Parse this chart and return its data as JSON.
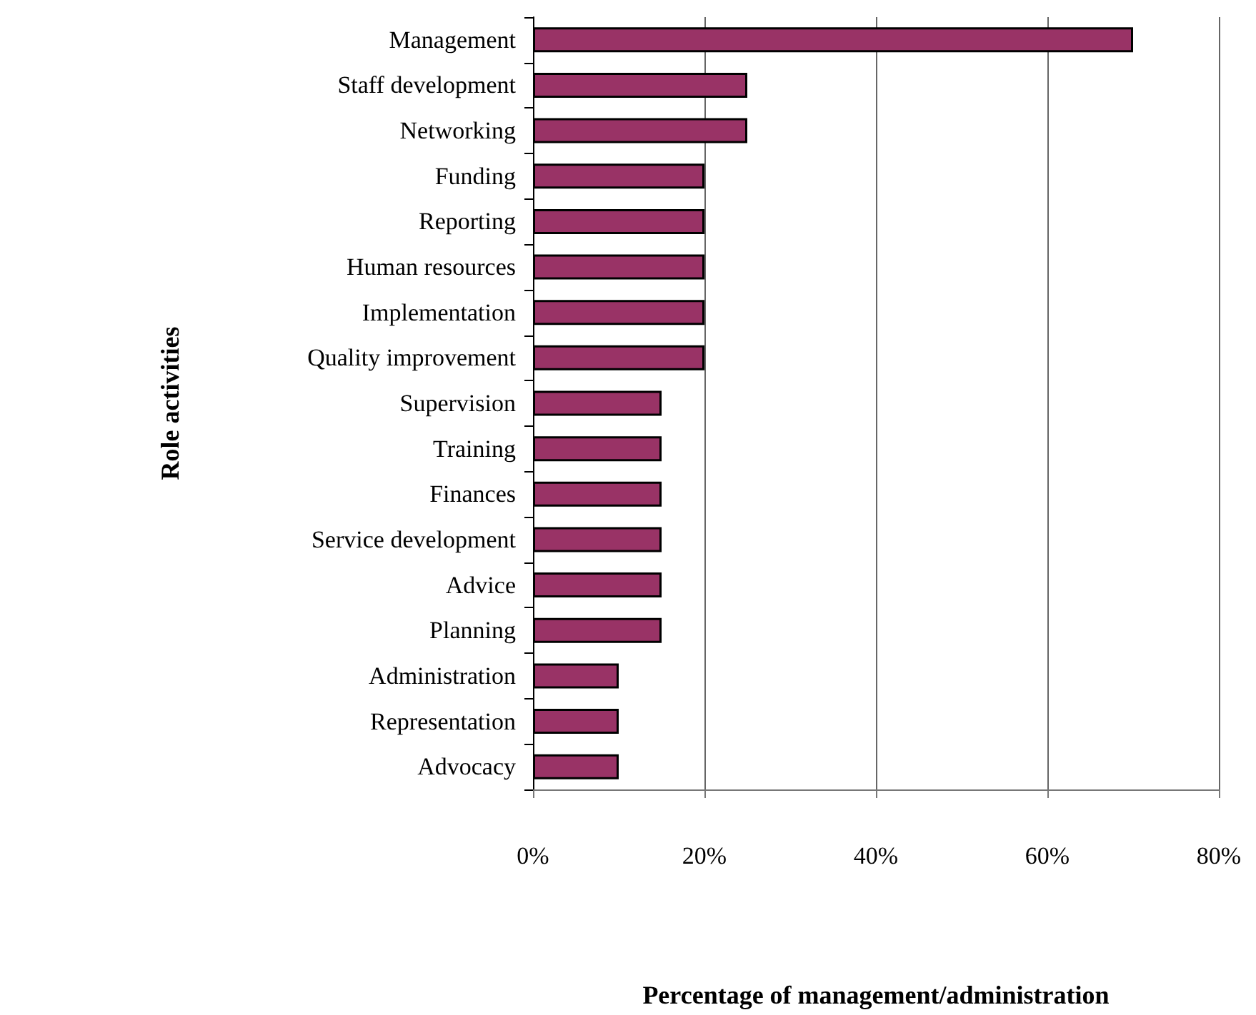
{
  "chart_data": {
    "type": "bar",
    "orientation": "horizontal",
    "xlabel": "Percentage of management/administration",
    "ylabel": "Role activities",
    "categories": [
      "Management",
      "Staff development",
      "Networking",
      "Funding",
      "Reporting",
      "Human resources",
      "Implementation",
      "Quality improvement",
      "Supervision",
      "Training",
      "Finances",
      "Service development",
      "Advice",
      "Planning",
      "Administration",
      "Representation",
      "Advocacy"
    ],
    "values": [
      70,
      25,
      25,
      20,
      20,
      20,
      20,
      20,
      15,
      15,
      15,
      15,
      15,
      15,
      10,
      10,
      10
    ],
    "color": "#993366",
    "xlim": [
      0,
      80
    ],
    "xticks": [
      {
        "value": 0,
        "label": "0%"
      },
      {
        "value": 20,
        "label": "20%"
      },
      {
        "value": 40,
        "label": "40%"
      },
      {
        "value": 60,
        "label": "60%"
      },
      {
        "value": 80,
        "label": "80%"
      }
    ],
    "grid": "x"
  }
}
